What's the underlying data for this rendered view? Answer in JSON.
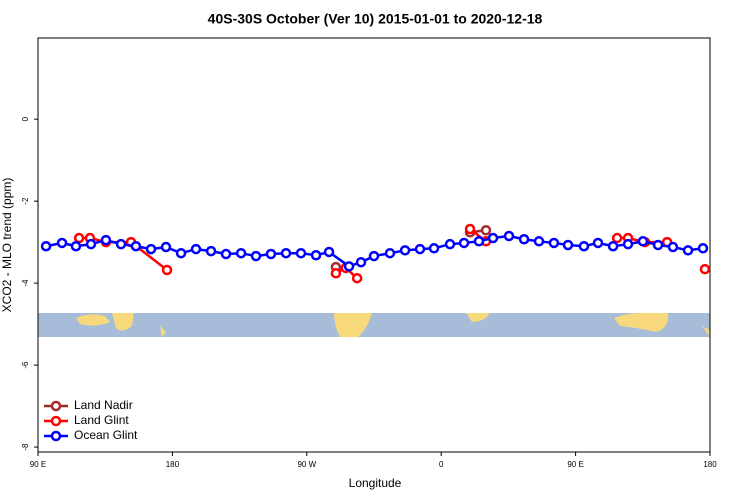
{
  "chart_data": {
    "type": "line",
    "title": "40S-30S October (Ver 10)   2015-01-01 to 2020-12-18",
    "xlabel": "Longitude",
    "ylabel": "XCO2 - MLO trend (ppm)",
    "xlim": [
      90,
      540
    ],
    "ylim": [
      -8.12,
      1.98
    ],
    "xticks": [
      {
        "value": 90,
        "label": "90 E"
      },
      {
        "value": 180,
        "label": "180"
      },
      {
        "value": 270,
        "label": "90 W"
      },
      {
        "value": 360,
        "label": "0"
      },
      {
        "value": 450,
        "label": "90 E"
      },
      {
        "value": 540,
        "label": "180"
      }
    ],
    "yticks": [
      0,
      -2,
      -4,
      -6,
      -8
    ],
    "grid": false,
    "legend": "bottom-left",
    "series": [
      {
        "name": "Land Nadir",
        "color": "#a52a2a",
        "x": [
          289.5,
          null,
          379.3,
          390.0
        ],
        "values": [
          -3.61,
          null,
          -2.76,
          -2.71
        ]
      },
      {
        "name": "Land Glint",
        "color": "#ff0000",
        "x": [
          117.5,
          124.8,
          135.5,
          152.3,
          176.4,
          null,
          289.5,
          296.1,
          303.7,
          null,
          379.3,
          390.0,
          null,
          477.8,
          485.1,
          496.5,
          511.3,
          null,
          536.6
        ],
        "values": [
          -2.9,
          -2.9,
          -3.0,
          -3.0,
          -3.68,
          null,
          -3.76,
          -3.63,
          -3.88,
          null,
          -2.68,
          -2.98,
          null,
          -2.9,
          -2.9,
          -3.0,
          -3.0,
          null,
          -3.66
        ]
      },
      {
        "name": "Ocean Glint",
        "color": "#0000ff",
        "x": [
          95.4,
          106.1,
          115.4,
          125.5,
          135.5,
          145.6,
          155.6,
          165.7,
          175.7,
          185.8,
          195.8,
          205.9,
          215.9,
          226.0,
          236.0,
          246.0,
          256.1,
          266.1,
          276.2,
          284.9,
          298.3,
          306.3,
          315.0,
          325.7,
          335.8,
          345.8,
          355.2,
          365.9,
          375.3,
          385.3,
          394.7,
          405.4,
          415.5,
          425.5,
          435.5,
          444.9,
          455.6,
          465.0,
          475.1,
          485.1,
          495.1,
          505.2,
          515.2,
          525.3,
          535.3
        ],
        "values": [
          -3.1,
          -3.02,
          -3.1,
          -3.05,
          -2.95,
          -3.05,
          -3.1,
          -3.17,
          -3.12,
          -3.27,
          -3.17,
          -3.22,
          -3.29,
          -3.27,
          -3.34,
          -3.29,
          -3.27,
          -3.27,
          -3.32,
          -3.24,
          -3.59,
          -3.49,
          -3.34,
          -3.27,
          -3.2,
          -3.17,
          -3.15,
          -3.05,
          -3.02,
          -2.98,
          -2.9,
          -2.85,
          -2.93,
          -2.98,
          -3.02,
          -3.07,
          -3.1,
          -3.02,
          -3.1,
          -3.05,
          -2.98,
          -3.07,
          -3.12,
          -3.2,
          -3.15
        ]
      }
    ]
  }
}
